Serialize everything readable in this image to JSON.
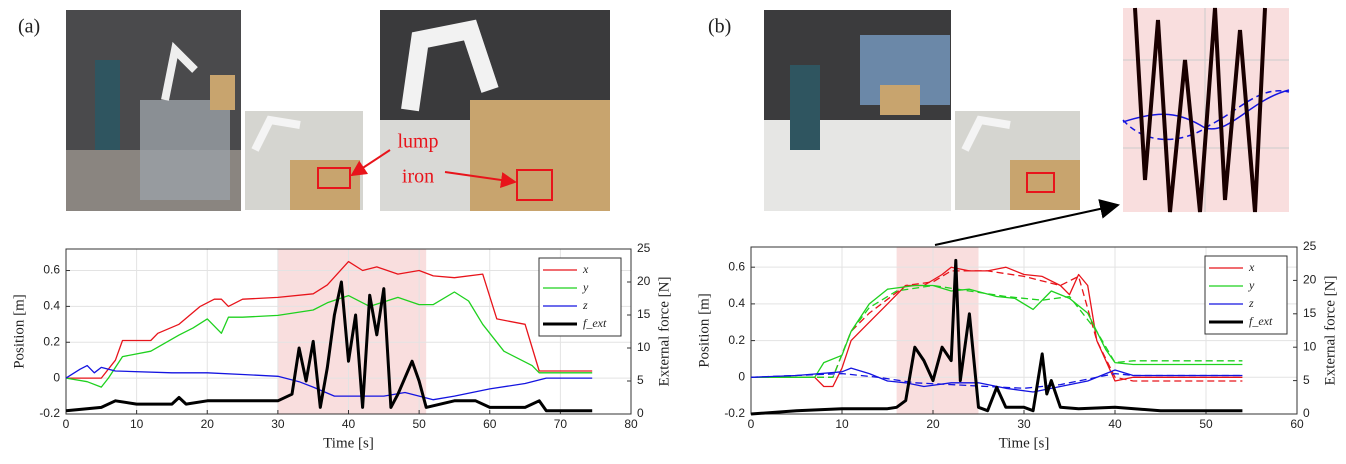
{
  "chart_data": [
    {
      "type": "line",
      "panel_label": "(a)",
      "annotations": [
        "lump",
        "iron"
      ],
      "xlabel": "Time [s]",
      "ylabel": "Position [m]",
      "y2label": "External force [N]",
      "xlim": [
        0,
        80
      ],
      "xticks": [
        0,
        10,
        20,
        30,
        40,
        50,
        60,
        70,
        80
      ],
      "ylim": [
        -0.2,
        0.72
      ],
      "yticks": [
        -0.2,
        0,
        0.2,
        0.4,
        0.6
      ],
      "y2lim": [
        0,
        25
      ],
      "y2ticks": [
        0,
        5,
        10,
        15,
        20,
        25
      ],
      "grid": true,
      "legend": "upper right",
      "highlight": [
        30,
        51
      ],
      "highlight_color": "#f9dede",
      "series": [
        {
          "name": "x",
          "color": "#e8141b",
          "x": [
            0,
            5,
            7,
            8,
            12,
            13,
            16,
            19,
            21,
            22,
            23,
            25,
            30,
            35,
            37,
            40,
            42,
            44,
            47,
            50,
            52,
            55,
            59,
            61,
            65,
            67,
            74.5
          ],
          "values": [
            0,
            0,
            0.1,
            0.21,
            0.21,
            0.25,
            0.3,
            0.4,
            0.44,
            0.44,
            0.4,
            0.44,
            0.45,
            0.47,
            0.52,
            0.65,
            0.6,
            0.62,
            0.58,
            0.6,
            0.57,
            0.56,
            0.58,
            0.33,
            0.3,
            0.04,
            0.04
          ]
        },
        {
          "name": "y",
          "color": "#1fd11f",
          "x": [
            0,
            3,
            5,
            6,
            8,
            12,
            16,
            18,
            20,
            22,
            23,
            25,
            30,
            35,
            37,
            40,
            43,
            47,
            50,
            52,
            55,
            57,
            59,
            62,
            66,
            67,
            74.5
          ],
          "values": [
            0,
            -0.02,
            -0.05,
            0,
            0.12,
            0.15,
            0.24,
            0.28,
            0.33,
            0.25,
            0.34,
            0.34,
            0.35,
            0.38,
            0.42,
            0.46,
            0.4,
            0.45,
            0.41,
            0.41,
            0.48,
            0.43,
            0.3,
            0.15,
            0.07,
            0.03,
            0.03
          ]
        },
        {
          "name": "z",
          "color": "#1414e0",
          "x": [
            0,
            2,
            3,
            4,
            5,
            7,
            15,
            20,
            25,
            30,
            33,
            35,
            38,
            45,
            48,
            52,
            55,
            60,
            65,
            68,
            74.5
          ],
          "values": [
            0,
            0.05,
            0.07,
            0.03,
            0.06,
            0.04,
            0.03,
            0.03,
            0.02,
            0.01,
            -0.02,
            -0.05,
            -0.1,
            -0.1,
            -0.08,
            -0.12,
            -0.1,
            -0.06,
            -0.03,
            0,
            0
          ]
        },
        {
          "name": "f_ext",
          "color": "#000000",
          "axis": "y2",
          "line_width": 3,
          "x": [
            0,
            5,
            7,
            10,
            15,
            16,
            17,
            20,
            25,
            30,
            32,
            33,
            34,
            35,
            36,
            37,
            38,
            39,
            40,
            41,
            42,
            43,
            44,
            45,
            46,
            47,
            49,
            50,
            51,
            55,
            58,
            60,
            65,
            67,
            68,
            74.5
          ],
          "values": [
            0.5,
            1,
            2,
            1.5,
            1.5,
            2.5,
            1.5,
            2,
            2,
            2,
            3,
            10,
            5,
            11,
            1,
            7,
            15,
            20,
            8,
            15,
            1,
            18,
            12,
            19,
            1,
            3,
            8,
            5,
            1,
            2,
            2,
            1,
            1,
            2,
            0.5,
            0.5
          ]
        }
      ]
    },
    {
      "type": "line",
      "panel_label": "(b)",
      "xlabel": "Time [s]",
      "ylabel": "Position [m]",
      "y2label": "External force [N]",
      "xlim": [
        0,
        60
      ],
      "xticks": [
        0,
        10,
        20,
        30,
        40,
        50,
        60
      ],
      "ylim": [
        -0.2,
        0.71
      ],
      "yticks": [
        -0.2,
        0,
        0.2,
        0.4,
        0.6
      ],
      "y2lim": [
        0,
        25
      ],
      "y2ticks": [
        0,
        5,
        10,
        15,
        20,
        25
      ],
      "grid": true,
      "legend": "upper right",
      "highlight": [
        16,
        25
      ],
      "highlight_color": "#f9dede",
      "series": [
        {
          "name": "x",
          "color": "#e8141b",
          "x": [
            0,
            7,
            8,
            9,
            10,
            11,
            13,
            15,
            17,
            19,
            21,
            22,
            24,
            26,
            28,
            30,
            32,
            34,
            35,
            36,
            37,
            38,
            40,
            42,
            54
          ],
          "values": [
            0,
            0,
            -0.05,
            -0.05,
            0.05,
            0.2,
            0.3,
            0.4,
            0.5,
            0.5,
            0.56,
            0.6,
            0.58,
            0.58,
            0.6,
            0.56,
            0.55,
            0.5,
            0.45,
            0.56,
            0.5,
            0.2,
            -0.02,
            0,
            0
          ]
        },
        {
          "color": "#e8141b",
          "dashed": true,
          "x": [
            0,
            9,
            11,
            13,
            17,
            20,
            22,
            26,
            30,
            34,
            36,
            38,
            40,
            42,
            54
          ],
          "values": [
            0,
            0,
            0.25,
            0.35,
            0.5,
            0.52,
            0.58,
            0.58,
            0.55,
            0.5,
            0.55,
            0.2,
            0,
            -0.02,
            -0.02
          ]
        },
        {
          "name": "y",
          "color": "#1fd11f",
          "x": [
            0,
            7,
            8,
            10,
            11,
            13,
            15,
            18,
            20,
            22,
            24,
            27,
            29,
            31,
            33,
            35,
            37,
            39,
            40,
            42,
            54
          ],
          "values": [
            0,
            0,
            0.08,
            0.12,
            0.25,
            0.4,
            0.48,
            0.5,
            0.5,
            0.47,
            0.48,
            0.44,
            0.43,
            0.37,
            0.47,
            0.43,
            0.35,
            0.15,
            0.08,
            0.07,
            0.07
          ]
        },
        {
          "color": "#1fd11f",
          "dashed": true,
          "x": [
            0,
            9,
            11,
            13,
            16,
            20,
            24,
            28,
            32,
            35,
            38,
            40,
            42,
            54
          ],
          "values": [
            0,
            0,
            0.25,
            0.38,
            0.47,
            0.5,
            0.47,
            0.44,
            0.42,
            0.44,
            0.25,
            0.08,
            0.09,
            0.09
          ]
        },
        {
          "name": "z",
          "color": "#1414e0",
          "x": [
            0,
            5,
            10,
            11,
            13,
            15,
            17,
            19,
            22,
            25,
            28,
            31,
            34,
            37,
            39,
            40,
            42,
            54
          ],
          "values": [
            0,
            0.01,
            0.03,
            0.05,
            0.02,
            -0.02,
            -0.03,
            -0.05,
            -0.03,
            -0.03,
            -0.06,
            -0.08,
            -0.05,
            -0.02,
            0.02,
            0.04,
            0.01,
            0.01
          ]
        },
        {
          "color": "#1414e0",
          "dashed": true,
          "x": [
            0,
            10,
            14,
            18,
            22,
            26,
            30,
            34,
            38,
            40,
            42,
            54
          ],
          "values": [
            0,
            0.02,
            0,
            -0.03,
            -0.04,
            -0.05,
            -0.06,
            -0.04,
            0,
            0.02,
            0.01,
            0.01
          ]
        },
        {
          "name": "f_ext",
          "color": "#000000",
          "axis": "y2",
          "line_width": 3,
          "x": [
            0,
            5,
            10,
            15,
            16,
            17,
            18,
            19,
            20,
            21,
            22,
            22.5,
            23,
            24,
            25,
            26,
            27,
            28,
            30,
            31,
            32,
            32.5,
            33,
            34,
            36,
            40,
            45,
            54
          ],
          "values": [
            0,
            0.5,
            0.8,
            0.8,
            1,
            2,
            10,
            8,
            5,
            10,
            8,
            23,
            5,
            15,
            1,
            0.5,
            4,
            1,
            1,
            0.5,
            9,
            3,
            5,
            1,
            0.8,
            1,
            0.5,
            0.5
          ]
        }
      ]
    }
  ]
}
